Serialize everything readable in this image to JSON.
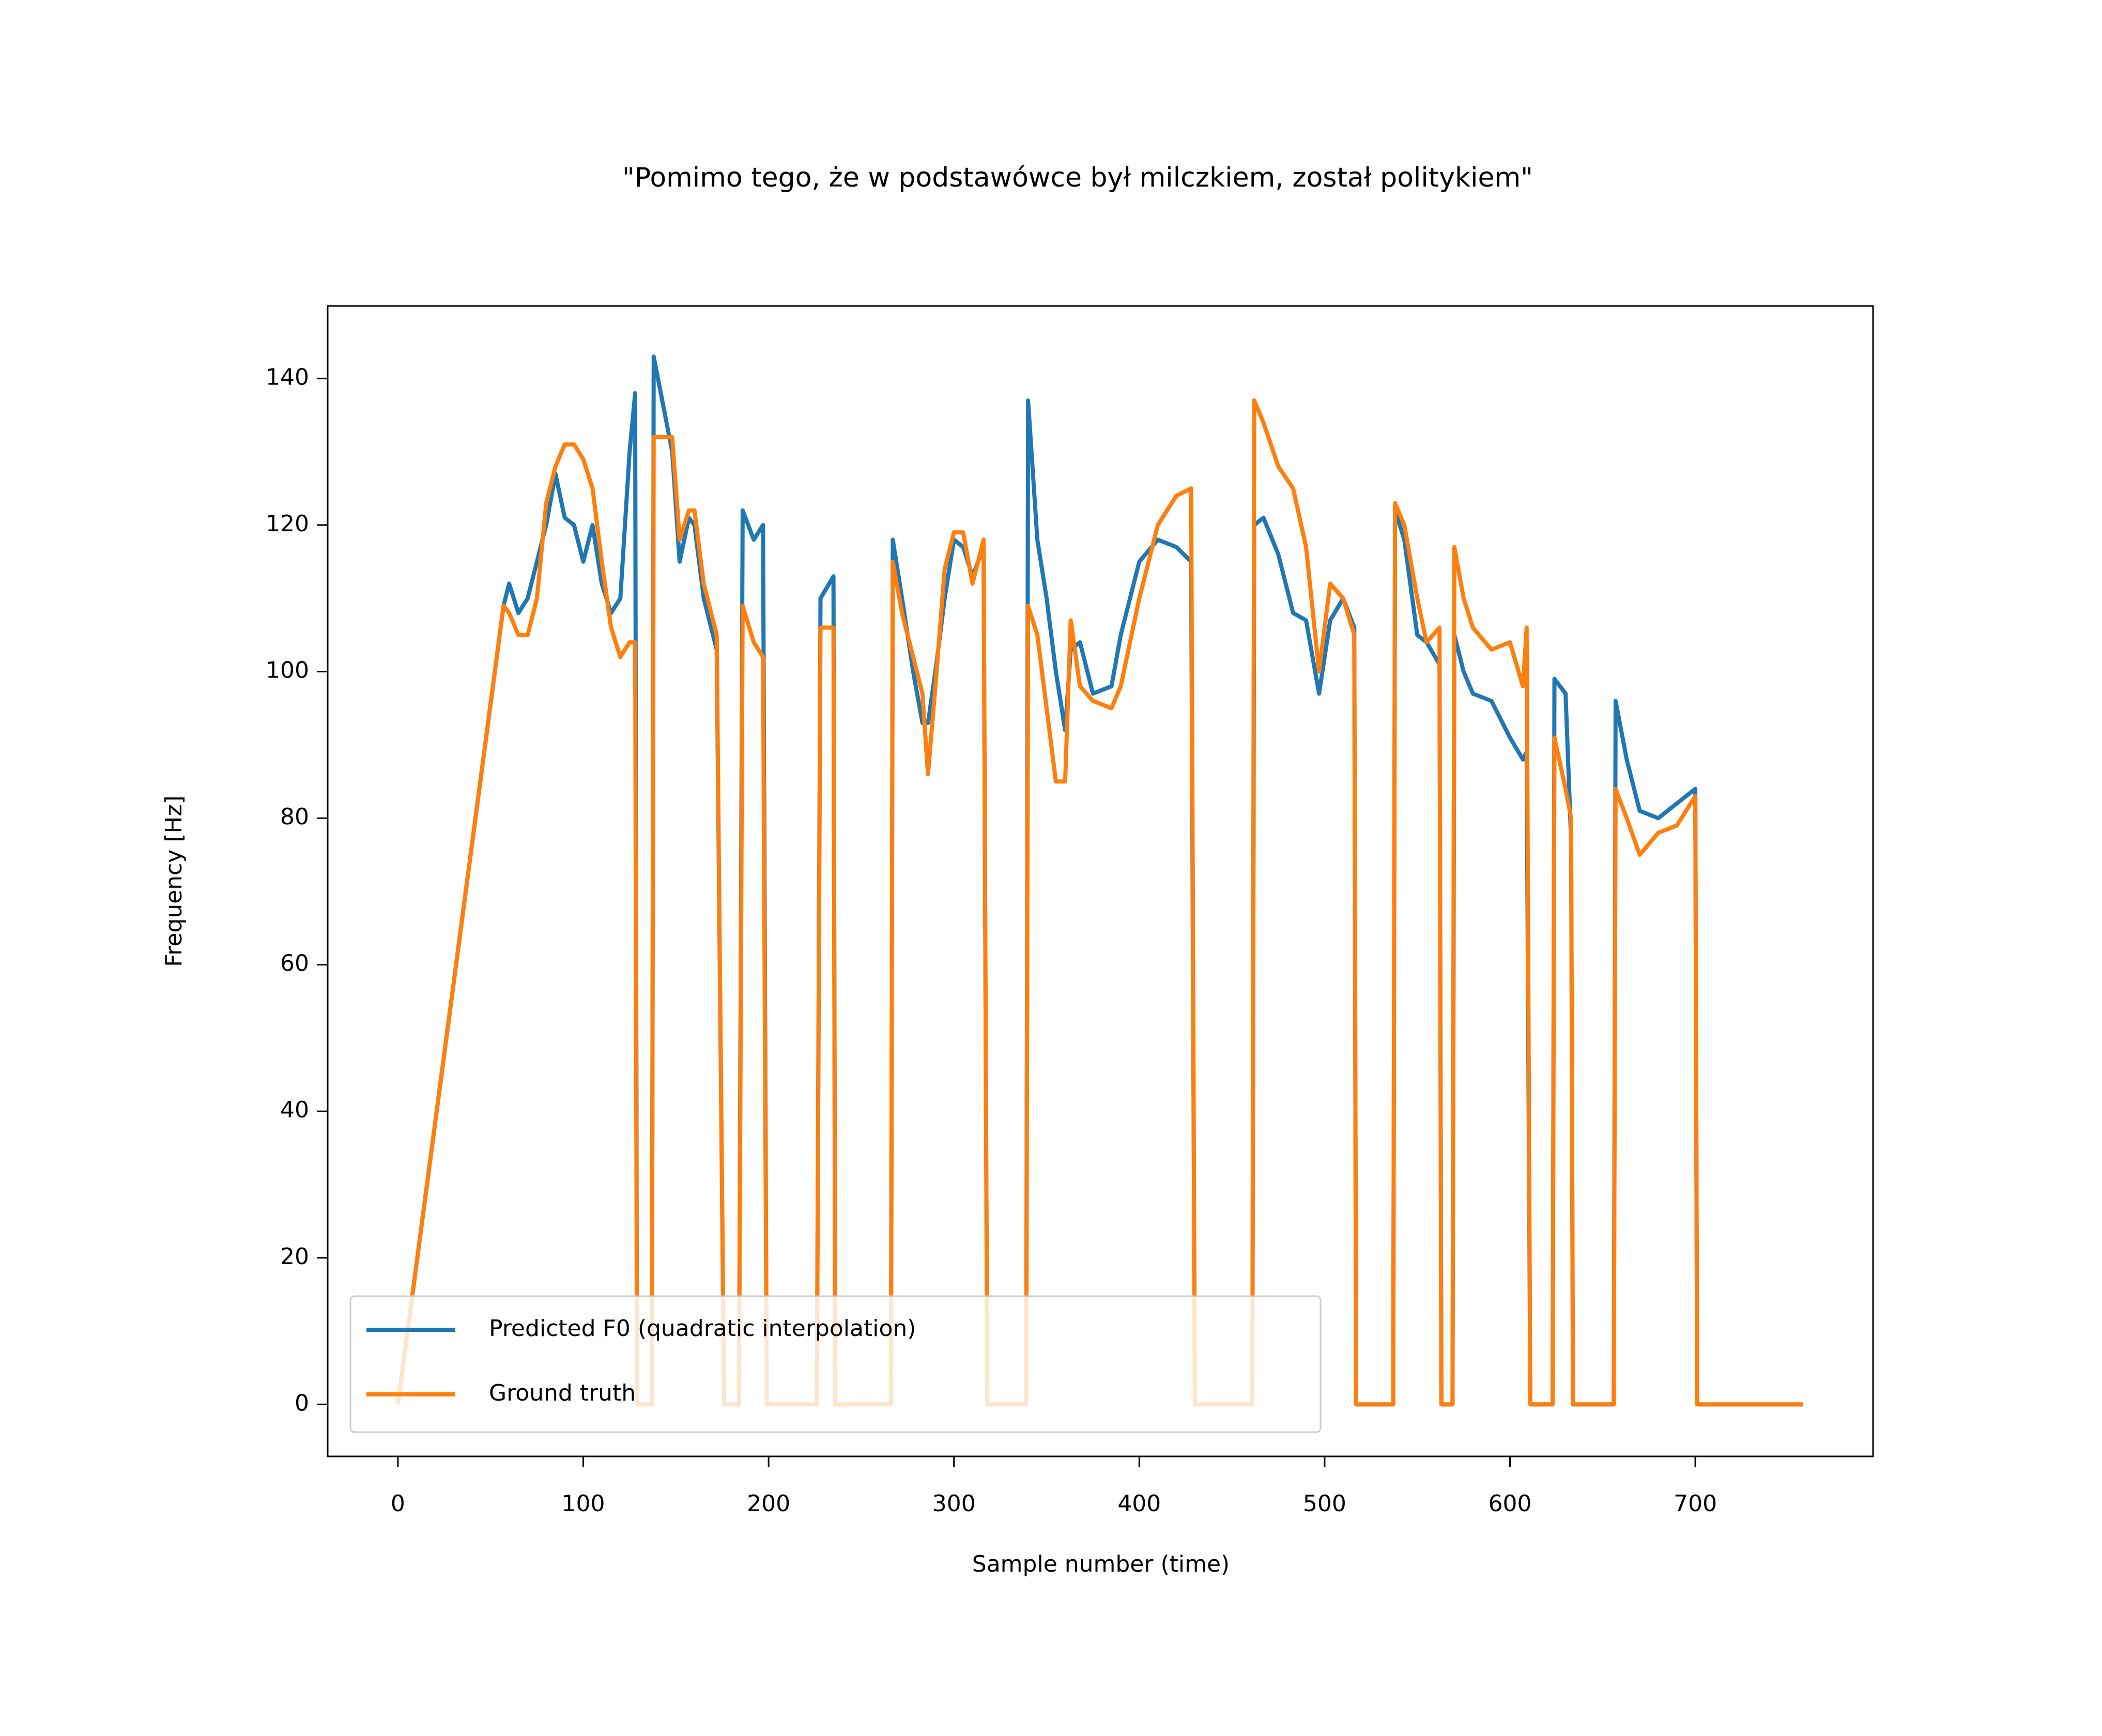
{
  "chart_data": {
    "type": "line",
    "title": "\"Pomimo tego, że w podstawówce był milczkiem, został politykiem\"",
    "xlabel": "Sample number (time)",
    "ylabel": "Frequency [Hz]",
    "x": [
      0,
      57,
      60,
      65,
      70,
      75,
      80,
      85,
      90,
      95,
      100,
      105,
      110,
      115,
      120,
      125,
      128,
      129,
      137,
      138,
      148,
      152,
      157,
      160,
      165,
      172,
      176,
      184,
      186,
      192,
      197,
      199,
      226,
      228,
      235,
      236,
      266,
      267,
      272,
      278,
      283,
      286,
      290,
      295,
      300,
      305,
      310,
      316,
      318,
      339,
      340,
      345,
      350,
      355,
      360,
      363,
      368,
      375,
      385,
      390,
      400,
      410,
      420,
      428,
      430,
      461,
      462,
      467,
      475,
      483,
      490,
      497,
      503,
      510,
      516,
      517,
      537,
      538,
      543,
      550,
      555,
      562,
      563,
      569,
      570,
      575,
      580,
      590,
      600,
      607,
      609,
      611,
      623,
      624,
      630,
      633,
      634,
      656,
      657,
      663,
      670,
      680,
      690,
      700,
      701,
      758
    ],
    "series": [
      {
        "name": "Predicted F0 (quadratic interpolation)",
        "color": "#1f77b4",
        "values": [
          0,
          109,
          112,
          108,
          110,
          115,
          120,
          127,
          121,
          120,
          115,
          120,
          112,
          108,
          110,
          130,
          138,
          0,
          0,
          143,
          130,
          115,
          121,
          120,
          110,
          103,
          0,
          0,
          122,
          118,
          120,
          0,
          0,
          110,
          113,
          0,
          0,
          118,
          110,
          100,
          93,
          93,
          100,
          110,
          118,
          117,
          113,
          117,
          0,
          0,
          137,
          118,
          110,
          100,
          92,
          103,
          104,
          97,
          98,
          105,
          115,
          118,
          117,
          115,
          0,
          0,
          120,
          121,
          116,
          108,
          107,
          97,
          107,
          110,
          106,
          0,
          0,
          122,
          118,
          105,
          104,
          101,
          0,
          0,
          105,
          100,
          97,
          96,
          91,
          88,
          89,
          0,
          0,
          99,
          97,
          77,
          0,
          0,
          96,
          88,
          81,
          80,
          82,
          84,
          0,
          0
        ]
      },
      {
        "name": "Ground truth",
        "color": "#ff7f0e",
        "values": [
          0,
          109,
          108,
          105,
          105,
          110,
          123,
          128,
          131,
          131,
          129,
          125,
          115,
          106,
          102,
          104,
          104,
          0,
          0,
          132,
          132,
          118,
          122,
          122,
          112,
          105,
          0,
          0,
          109,
          104,
          102,
          0,
          0,
          106,
          106,
          0,
          0,
          115,
          108,
          102,
          97,
          86,
          98,
          114,
          119,
          119,
          112,
          118,
          0,
          0,
          109,
          105,
          95,
          85,
          85,
          107,
          98,
          96,
          95,
          98,
          110,
          120,
          124,
          125,
          0,
          0,
          137,
          134,
          128,
          125,
          117,
          100,
          112,
          110,
          105,
          0,
          0,
          123,
          120,
          110,
          104,
          106,
          0,
          0,
          117,
          110,
          106,
          103,
          104,
          98,
          106,
          0,
          0,
          91,
          84,
          80,
          0,
          0,
          84,
          80,
          75,
          78,
          79,
          83,
          0,
          0
        ]
      }
    ],
    "xlim": [
      -37.9,
      795.9
    ],
    "xticks": [
      0,
      100,
      200,
      300,
      400,
      500,
      600,
      700
    ],
    "ylim": [
      -7.1,
      149.9
    ],
    "yticks": [
      0,
      20,
      40,
      60,
      80,
      100,
      120,
      140
    ],
    "legend": "lower left"
  }
}
